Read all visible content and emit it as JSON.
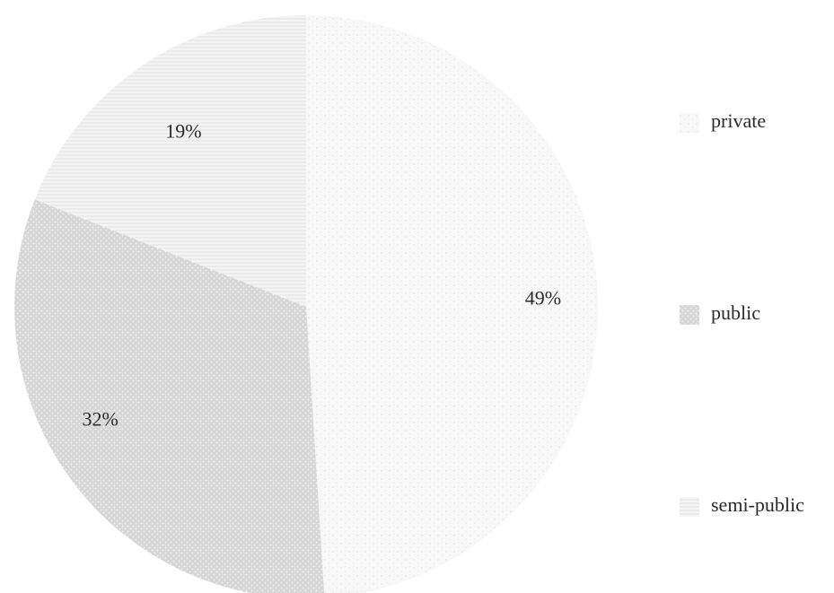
{
  "chart_data": {
    "type": "pie",
    "title": "",
    "slices": [
      {
        "name": "private",
        "value": 49,
        "label": "49%",
        "color": "#f7f7f7",
        "pattern": "speckle"
      },
      {
        "name": "public",
        "value": 32,
        "label": "32%",
        "color": "#dcdcdc",
        "pattern": "dots"
      },
      {
        "name": "semi-public",
        "value": 19,
        "label": "19%",
        "color": "#efefef",
        "pattern": "lines"
      }
    ],
    "legend_position": "right",
    "start_angle_from_top_deg": 0,
    "direction": "clockwise"
  }
}
